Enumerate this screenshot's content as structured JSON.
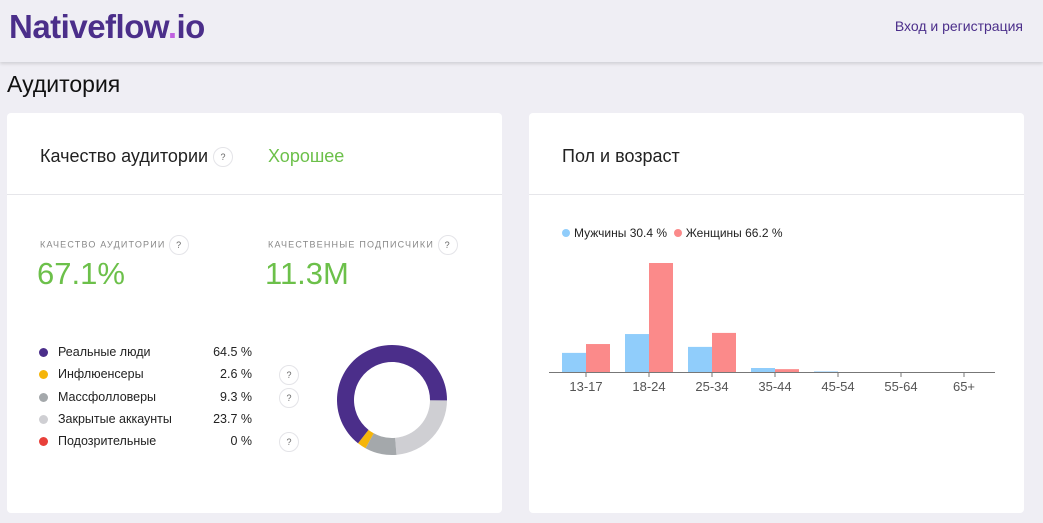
{
  "header": {
    "logo_main": "Nativeflow",
    "logo_dot": ".",
    "logo_tail": "io",
    "login": "Вход и регистрация"
  },
  "page_title": "Аудитория",
  "quality": {
    "title": "Качество аудитории",
    "help": "?",
    "rating": "Хорошее",
    "metric1_label": "Качество аудитории",
    "metric1_value": "67.1%",
    "metric2_label": "Качественные подписчики",
    "metric2_value": "11.3M",
    "items": [
      {
        "label": "Реальные люди",
        "pct": "64.5 %",
        "value": 64.5,
        "color": "#4b2e8a",
        "help": false
      },
      {
        "label": "Инфлюенсеры",
        "pct": "2.6 %",
        "value": 2.6,
        "color": "#f5b50a",
        "help": true
      },
      {
        "label": "Массфолловеры",
        "pct": "9.3 %",
        "value": 9.3,
        "color": "#a4a8ab",
        "help": true
      },
      {
        "label": "Закрытые аккаунты",
        "pct": "23.7 %",
        "value": 23.7,
        "color": "#cfcfd3",
        "help": false
      },
      {
        "label": "Подозрительные",
        "pct": "0 %",
        "value": 0,
        "color": "#e8403a",
        "help": true
      }
    ]
  },
  "gender": {
    "title": "Пол и возраст"
  },
  "chart_data": {
    "type": "bar",
    "categories": [
      "13-17",
      "18-24",
      "25-34",
      "35-44",
      "45-54",
      "55-64",
      "65+"
    ],
    "series": [
      {
        "name": "Мужчины 30.4 %",
        "color": "#90cdfb",
        "values": [
          6.7,
          13.3,
          8.8,
          1.4,
          0.2,
          0,
          0
        ]
      },
      {
        "name": "Женщины 66.2 %",
        "color": "#fb8a8a",
        "values": [
          9.8,
          41.7,
          13.7,
          1.0,
          0,
          0,
          0
        ]
      }
    ],
    "legend": "top-left",
    "grid": false
  }
}
